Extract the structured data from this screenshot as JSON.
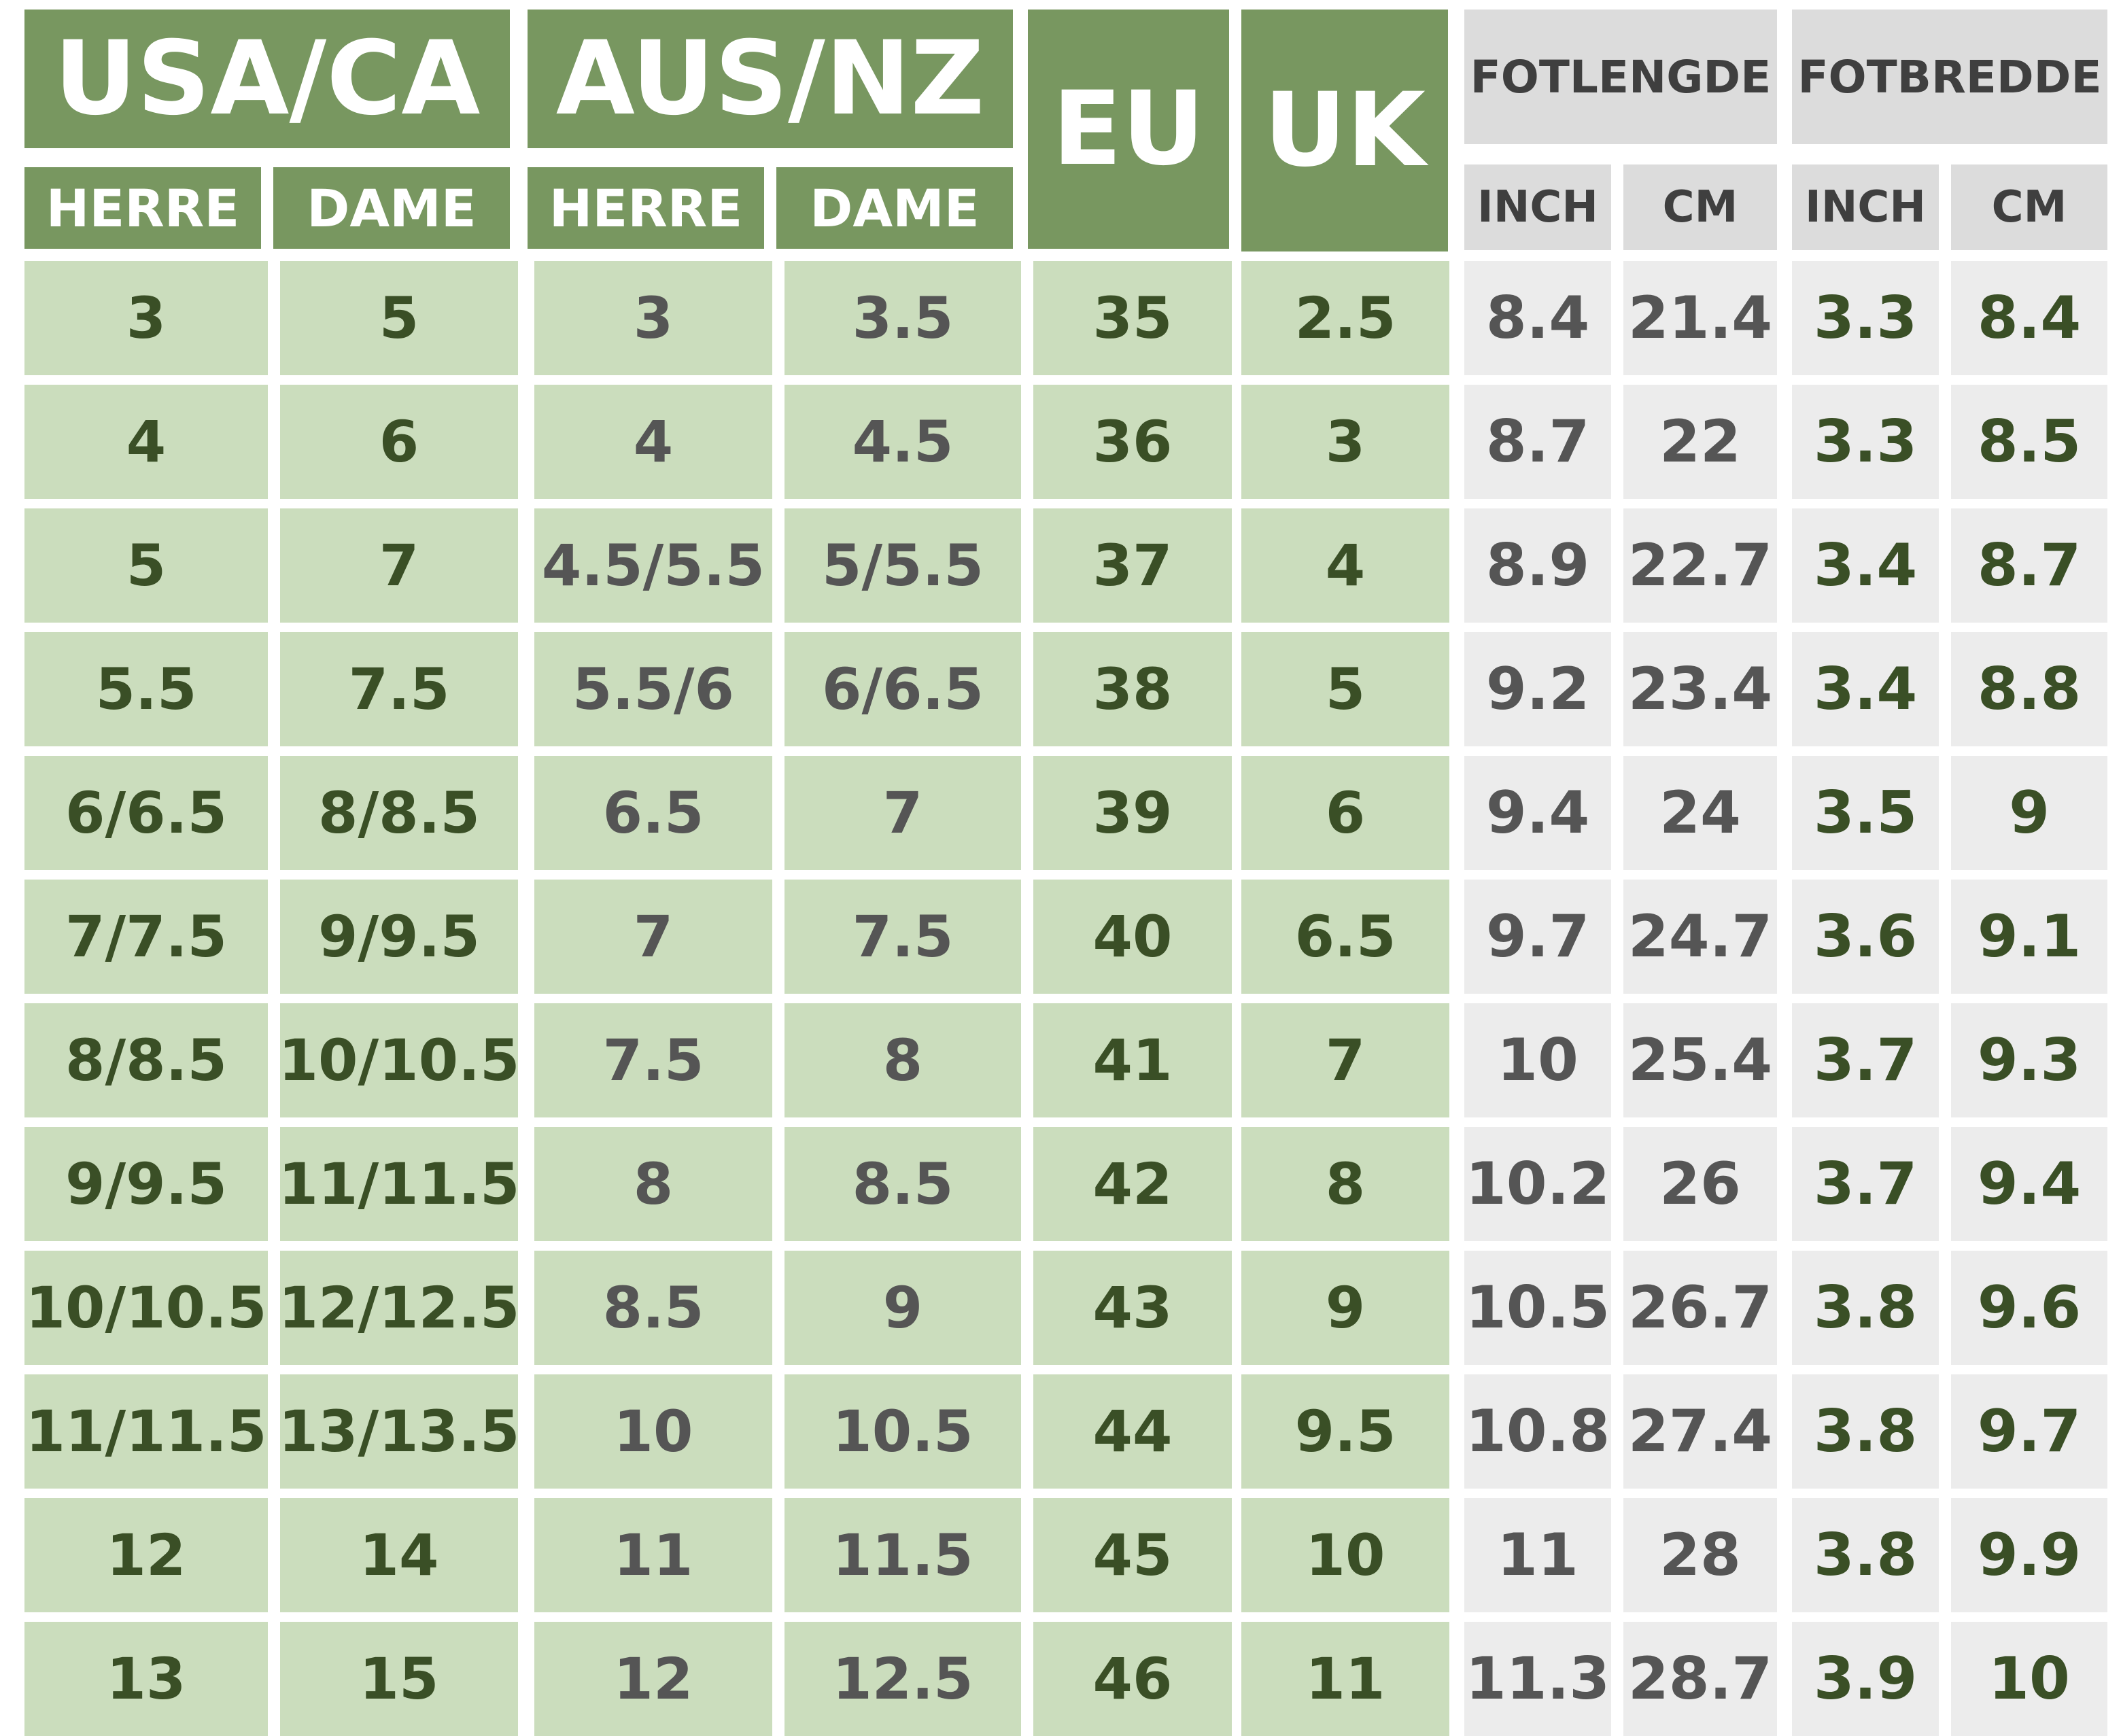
{
  "colors": {
    "header_green": "#789760",
    "body_green": "#cbddbd",
    "header_gray": "#dcdcdc",
    "body_gray": "#ececec",
    "text_green": "#3a4f26",
    "text_gray": "#555555"
  },
  "headers": {
    "usa_ca": "USA/CA",
    "aus_nz": "AUS/NZ",
    "eu": "EU",
    "uk": "UK",
    "fotlengde": "FOTLENGDE",
    "fotbredde": "FOTBREDDE",
    "herre": "HERRE",
    "dame": "DAME",
    "inch": "INCH",
    "cm": "CM"
  },
  "rows": [
    [
      "3",
      "5",
      "3",
      "3.5",
      "35",
      "2.5",
      "8.4",
      "21.4",
      "3.3",
      "8.4"
    ],
    [
      "4",
      "6",
      "4",
      "4.5",
      "36",
      "3",
      "8.7",
      "22",
      "3.3",
      "8.5"
    ],
    [
      "5",
      "7",
      "4.5/5.5",
      "5/5.5",
      "37",
      "4",
      "8.9",
      "22.7",
      "3.4",
      "8.7"
    ],
    [
      "5.5",
      "7.5",
      "5.5/6",
      "6/6.5",
      "38",
      "5",
      "9.2",
      "23.4",
      "3.4",
      "8.8"
    ],
    [
      "6/6.5",
      "8/8.5",
      "6.5",
      "7",
      "39",
      "6",
      "9.4",
      "24",
      "3.5",
      "9"
    ],
    [
      "7/7.5",
      "9/9.5",
      "7",
      "7.5",
      "40",
      "6.5",
      "9.7",
      "24.7",
      "3.6",
      "9.1"
    ],
    [
      "8/8.5",
      "10/10.5",
      "7.5",
      "8",
      "41",
      "7",
      "10",
      "25.4",
      "3.7",
      "9.3"
    ],
    [
      "9/9.5",
      "11/11.5",
      "8",
      "8.5",
      "42",
      "8",
      "10.2",
      "26",
      "3.7",
      "9.4"
    ],
    [
      "10/10.5",
      "12/12.5",
      "8.5",
      "9",
      "43",
      "9",
      "10.5",
      "26.7",
      "3.8",
      "9.6"
    ],
    [
      "11/11.5",
      "13/13.5",
      "10",
      "10.5",
      "44",
      "9.5",
      "10.8",
      "27.4",
      "3.8",
      "9.7"
    ],
    [
      "12",
      "14",
      "11",
      "11.5",
      "45",
      "10",
      "11",
      "28",
      "3.8",
      "9.9"
    ],
    [
      "13",
      "15",
      "12",
      "12.5",
      "46",
      "11",
      "11.3",
      "28.7",
      "3.9",
      "10"
    ]
  ]
}
